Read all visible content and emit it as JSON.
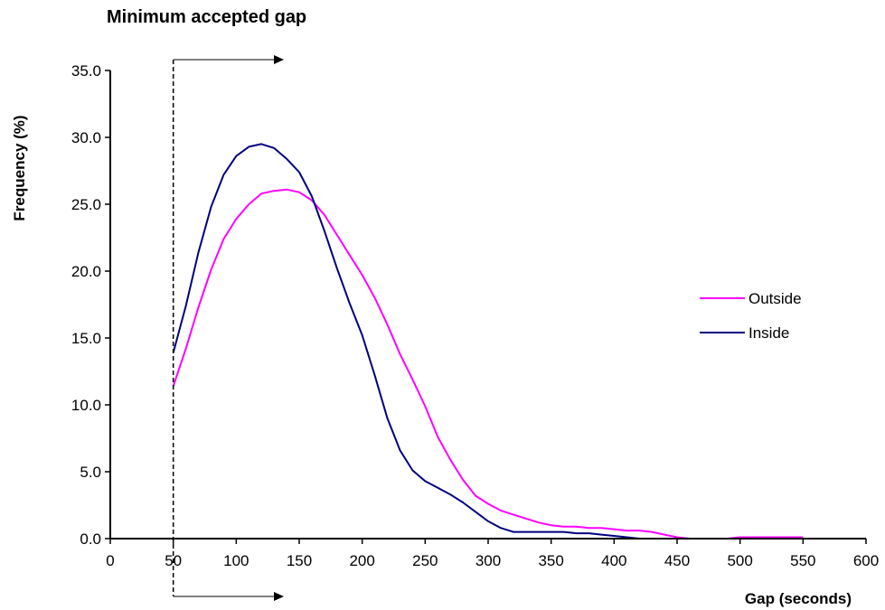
{
  "chart_data": {
    "type": "line",
    "title": "Minimum accepted gap",
    "xlabel": "Gap (seconds)",
    "ylabel": "Frequency (%)",
    "xlim": [
      0,
      600
    ],
    "ylim": [
      0,
      35
    ],
    "x_ticks": [
      "0",
      "50",
      "100",
      "150",
      "200",
      "250",
      "300",
      "350",
      "400",
      "450",
      "500",
      "550",
      "600"
    ],
    "y_ticks": [
      "0.0",
      "5.0",
      "10.0",
      "15.0",
      "20.0",
      "25.0",
      "30.0",
      "35.0"
    ],
    "grid": false,
    "legend_position": "right",
    "marker_x": 50,
    "series": [
      {
        "name": "Outside",
        "color": "#ff00ff",
        "x": [
          50,
          60,
          70,
          80,
          90,
          100,
          110,
          120,
          130,
          140,
          150,
          160,
          170,
          180,
          190,
          200,
          210,
          220,
          230,
          240,
          250,
          260,
          270,
          280,
          290,
          300,
          310,
          320,
          330,
          340,
          350,
          360,
          370,
          380,
          390,
          400,
          410,
          420,
          430,
          440,
          450,
          460,
          470,
          480,
          490,
          500,
          510,
          520,
          530,
          540,
          550
        ],
        "y": [
          11.4,
          14.2,
          17.3,
          20.1,
          22.4,
          23.9,
          25.0,
          25.8,
          26.0,
          26.1,
          25.9,
          25.3,
          24.2,
          22.7,
          21.2,
          19.7,
          18.0,
          16.0,
          13.8,
          11.9,
          9.9,
          7.6,
          5.9,
          4.4,
          3.2,
          2.6,
          2.1,
          1.8,
          1.5,
          1.2,
          1.0,
          0.9,
          0.9,
          0.8,
          0.8,
          0.7,
          0.6,
          0.6,
          0.5,
          0.3,
          0.1,
          0.0,
          0.0,
          0.0,
          0.0,
          0.1,
          0.1,
          0.1,
          0.1,
          0.1,
          0.1
        ]
      },
      {
        "name": "Inside",
        "color": "#000080",
        "x": [
          50,
          60,
          70,
          80,
          90,
          100,
          110,
          120,
          130,
          140,
          150,
          160,
          170,
          180,
          190,
          200,
          210,
          220,
          230,
          240,
          250,
          260,
          270,
          280,
          290,
          300,
          310,
          320,
          330,
          340,
          350,
          360,
          370,
          380,
          390,
          400,
          410,
          420,
          430,
          440,
          450,
          460,
          470,
          480,
          490,
          500,
          510,
          520,
          530,
          540,
          550
        ],
        "y": [
          13.9,
          17.4,
          21.4,
          24.8,
          27.2,
          28.6,
          29.3,
          29.5,
          29.2,
          28.4,
          27.4,
          25.6,
          23.0,
          20.2,
          17.6,
          15.2,
          12.2,
          9.0,
          6.6,
          5.1,
          4.3,
          3.8,
          3.3,
          2.7,
          2.0,
          1.3,
          0.8,
          0.5,
          0.5,
          0.5,
          0.5,
          0.5,
          0.4,
          0.4,
          0.3,
          0.2,
          0.1,
          0.0,
          0.0,
          0.0,
          0.0,
          0.0,
          0.0,
          0.0,
          0.0,
          0.0,
          0.0,
          0.0,
          0.0,
          0.0,
          0.0
        ]
      }
    ]
  }
}
